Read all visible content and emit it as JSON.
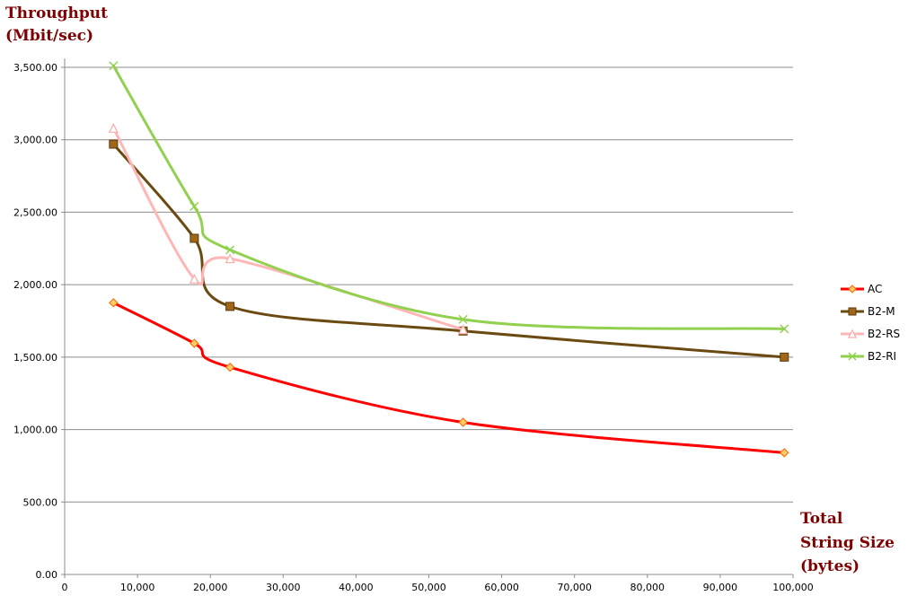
{
  "chart_data": {
    "type": "line",
    "ylabel_lines": [
      "Throughput",
      "(Mbit/sec)"
    ],
    "xlabel_lines": [
      "Total",
      "String Size",
      "(bytes)"
    ],
    "xlim": [
      0,
      100000
    ],
    "ylim": [
      0,
      3500
    ],
    "x_ticks": [
      0,
      10000,
      20000,
      30000,
      40000,
      50000,
      60000,
      70000,
      80000,
      90000,
      100000
    ],
    "x_tick_labels": [
      "0",
      "10,000",
      "20,000",
      "30,000",
      "40,000",
      "50,000",
      "60,000",
      "70,000",
      "80,000",
      "90,000",
      "100,000"
    ],
    "y_ticks": [
      0,
      500,
      1000,
      1500,
      2000,
      2500,
      3000,
      3500
    ],
    "y_tick_labels": [
      "0.00",
      "500.00",
      "1,000.00",
      "1,500.00",
      "2,000.00",
      "2,500.00",
      "3,000.00",
      "3,500.00"
    ],
    "grid": "horizontal",
    "legend_position": "right",
    "series": [
      {
        "name": "AC",
        "color": "#ff0000",
        "marker": "diamond",
        "marker_fill": "#ffcc66",
        "marker_stroke": "#ff6600",
        "x": [
          6700,
          17800,
          22700,
          54700,
          98800
        ],
        "y": [
          1875,
          1595,
          1430,
          1050,
          840
        ]
      },
      {
        "name": "B2-M",
        "color": "#6b4a12",
        "marker": "square",
        "marker_fill": "#a0661a",
        "marker_stroke": "#5a3a08",
        "x": [
          6700,
          17800,
          22700,
          54700,
          98800
        ],
        "y": [
          2970,
          2320,
          1850,
          1680,
          1500
        ]
      },
      {
        "name": "B2-RS",
        "color": "#ffb6b6",
        "marker": "triangle",
        "marker_fill": "#ffffff",
        "marker_stroke": "#ffaaaa",
        "x": [
          6700,
          17800,
          22700,
          54700
        ],
        "y": [
          3080,
          2040,
          2180,
          1690
        ]
      },
      {
        "name": "B2-RI",
        "color": "#92d050",
        "marker": "x",
        "marker_fill": "none",
        "marker_stroke": "#92d050",
        "x": [
          6700,
          17800,
          22700,
          54700,
          98800
        ],
        "y": [
          3510,
          2540,
          2240,
          1760,
          1695
        ]
      }
    ]
  }
}
